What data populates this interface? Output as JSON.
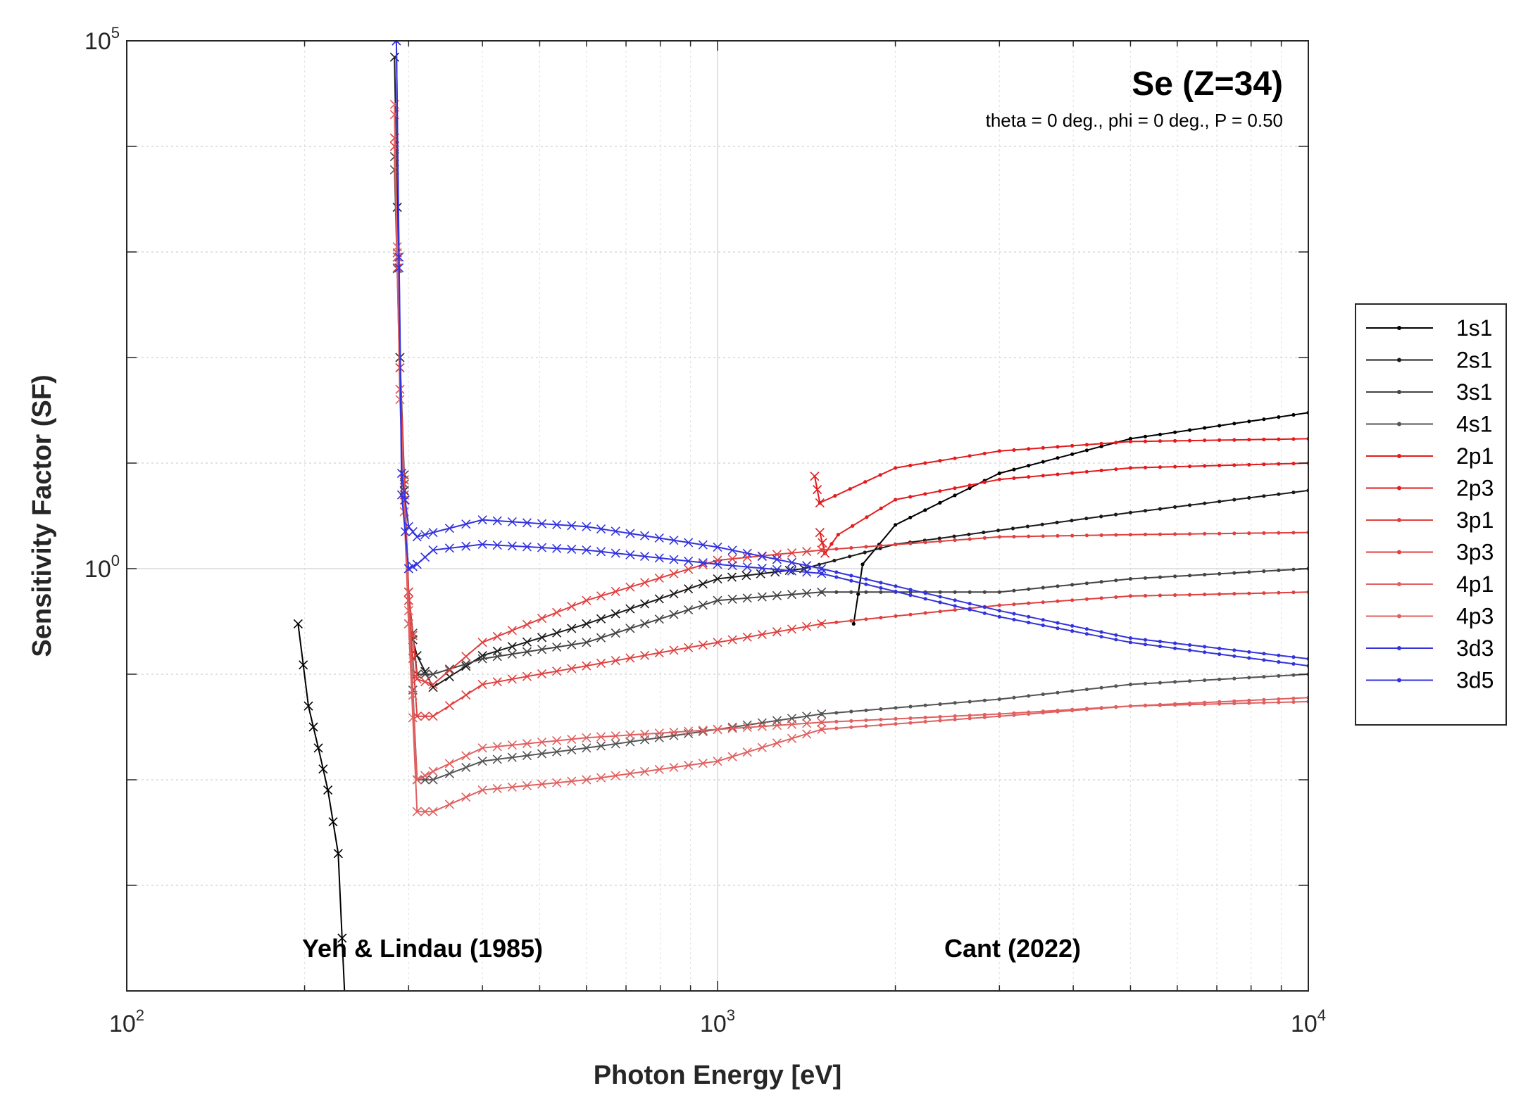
{
  "chart_data": {
    "type": "line",
    "title": "Se (Z=34)",
    "subtitle": "theta = 0 deg., phi = 0 deg., P = 0.50",
    "xlabel": "Photon Energy [eV]",
    "ylabel": "Sensitivity Factor (SF)",
    "xscale": "log",
    "yscale": "log",
    "xlim": [
      100,
      10000
    ],
    "ylim": [
      0.0001,
      100000
    ],
    "x_ticks": [
      {
        "base": "10",
        "exp": "2",
        "value": 100
      },
      {
        "base": "10",
        "exp": "3",
        "value": 1000
      },
      {
        "base": "10",
        "exp": "4",
        "value": 10000
      }
    ],
    "y_ticks": [
      {
        "base": "10",
        "exp": "0",
        "value": 1
      },
      {
        "base": "10",
        "exp": "5",
        "value": 100000
      }
    ],
    "grid": true,
    "legend_position": "outside-right",
    "annotations": [
      "Yeh & Lindau (1985)",
      "Cant (2022)"
    ],
    "series": [
      {
        "name": "1s1",
        "color": "#000000",
        "yeh": [
          [
            195,
            0.3
          ],
          [
            203,
            0.05
          ],
          [
            211,
            0.02
          ],
          [
            219,
            0.008
          ],
          [
            228,
            0.002
          ],
          [
            235,
            5e-05
          ]
        ],
        "cant": [
          [
            1700,
            0.3
          ],
          [
            1760,
            1.1
          ],
          [
            2000,
            2.6
          ],
          [
            3000,
            8
          ],
          [
            5000,
            17
          ],
          [
            10000,
            30
          ]
        ]
      },
      {
        "name": "2s1",
        "color": "#1a1a1a",
        "yeh": [
          [
            284,
            70000
          ],
          [
            290,
            100
          ],
          [
            300,
            0.3
          ],
          [
            310,
            0.15
          ],
          [
            330,
            0.075
          ],
          [
            400,
            0.15
          ],
          [
            600,
            0.3
          ],
          [
            1000,
            0.8
          ],
          [
            1400,
            1.0
          ]
        ],
        "cant": [
          [
            1400,
            1.0
          ],
          [
            2000,
            1.7
          ],
          [
            5000,
            3.4
          ],
          [
            10000,
            5.5
          ]
        ]
      },
      {
        "name": "3s1",
        "color": "#444444",
        "yeh": [
          [
            284,
            8000
          ],
          [
            290,
            100
          ],
          [
            300,
            0.6
          ],
          [
            310,
            0.1
          ],
          [
            330,
            0.1
          ],
          [
            400,
            0.14
          ],
          [
            600,
            0.2
          ],
          [
            1000,
            0.5
          ],
          [
            1500,
            0.6
          ]
        ],
        "cant": [
          [
            1500,
            0.6
          ],
          [
            3000,
            0.6
          ],
          [
            5000,
            0.8
          ],
          [
            10000,
            1.0
          ]
        ]
      },
      {
        "name": "4s1",
        "color": "#555555",
        "yeh": [
          [
            284,
            6000
          ],
          [
            290,
            80
          ],
          [
            300,
            0.5
          ],
          [
            310,
            0.01
          ],
          [
            330,
            0.01
          ],
          [
            400,
            0.015
          ],
          [
            600,
            0.02
          ],
          [
            1000,
            0.03
          ],
          [
            1500,
            0.042
          ]
        ],
        "cant": [
          [
            1500,
            0.042
          ],
          [
            3000,
            0.058
          ],
          [
            5000,
            0.08
          ],
          [
            10000,
            0.1
          ]
        ]
      },
      {
        "name": "2p1",
        "color": "#e41a1c",
        "yeh": [
          [
            1490,
            2.2
          ],
          [
            1520,
            1.4
          ]
        ],
        "cant": [
          [
            1520,
            1.4
          ],
          [
            1600,
            2.1
          ],
          [
            2000,
            4.5
          ],
          [
            3000,
            7
          ],
          [
            5000,
            9
          ],
          [
            10000,
            10
          ]
        ]
      },
      {
        "name": "2p3",
        "color": "#e41a1c",
        "yeh": [
          [
            1460,
            7.5
          ],
          [
            1490,
            4.2
          ]
        ],
        "cant": [
          [
            1490,
            4.2
          ],
          [
            2000,
            9
          ],
          [
            3000,
            13
          ],
          [
            5000,
            16
          ],
          [
            10000,
            17
          ]
        ]
      },
      {
        "name": "3p1",
        "color": "#e04040",
        "yeh": [
          [
            284,
            10000
          ],
          [
            290,
            50
          ],
          [
            300,
            0.5
          ],
          [
            310,
            0.04
          ],
          [
            330,
            0.04
          ],
          [
            400,
            0.08
          ],
          [
            600,
            0.12
          ],
          [
            1000,
            0.2
          ],
          [
            1500,
            0.3
          ]
        ],
        "cant": [
          [
            1500,
            0.3
          ],
          [
            3000,
            0.45
          ],
          [
            5000,
            0.55
          ],
          [
            10000,
            0.6
          ]
        ]
      },
      {
        "name": "3p3",
        "color": "#e04040",
        "yeh": [
          [
            284,
            12000
          ],
          [
            290,
            80
          ],
          [
            300,
            0.6
          ],
          [
            310,
            0.09
          ],
          [
            330,
            0.08
          ],
          [
            400,
            0.2
          ],
          [
            600,
            0.5
          ],
          [
            1000,
            1.2
          ],
          [
            1500,
            1.5
          ]
        ],
        "cant": [
          [
            1500,
            1.5
          ],
          [
            3000,
            2.0
          ],
          [
            5000,
            2.1
          ],
          [
            10000,
            2.2
          ]
        ]
      },
      {
        "name": "4p1",
        "color": "#e06060",
        "yeh": [
          [
            284,
            20000
          ],
          [
            290,
            40
          ],
          [
            300,
            0.3
          ],
          [
            310,
            0.005
          ],
          [
            330,
            0.005
          ],
          [
            400,
            0.008
          ],
          [
            600,
            0.01
          ],
          [
            1000,
            0.015
          ],
          [
            1500,
            0.03
          ]
        ],
        "cant": [
          [
            1500,
            0.03
          ],
          [
            3000,
            0.04
          ],
          [
            5000,
            0.05
          ],
          [
            10000,
            0.06
          ]
        ]
      },
      {
        "name": "4p3",
        "color": "#e06060",
        "yeh": [
          [
            284,
            25000
          ],
          [
            290,
            50
          ],
          [
            300,
            0.4
          ],
          [
            310,
            0.01
          ],
          [
            330,
            0.012
          ],
          [
            400,
            0.02
          ],
          [
            600,
            0.025
          ],
          [
            1000,
            0.03
          ],
          [
            1500,
            0.035
          ]
        ],
        "cant": [
          [
            1500,
            0.035
          ],
          [
            3000,
            0.042
          ],
          [
            5000,
            0.05
          ],
          [
            10000,
            0.055
          ]
        ]
      },
      {
        "name": "3d3",
        "color": "#3333dd",
        "yeh": [
          [
            286,
            100000
          ],
          [
            292,
            5
          ],
          [
            300,
            1.0
          ],
          [
            310,
            1.1
          ],
          [
            330,
            1.5
          ],
          [
            400,
            1.7
          ],
          [
            600,
            1.5
          ],
          [
            1000,
            1.1
          ],
          [
            1500,
            0.9
          ]
        ],
        "cant": [
          [
            1500,
            0.9
          ],
          [
            3000,
            0.35
          ],
          [
            5000,
            0.2
          ],
          [
            10000,
            0.12
          ]
        ]
      },
      {
        "name": "3d5",
        "color": "#3333dd",
        "yeh": [
          [
            286,
            100000
          ],
          [
            292,
            8
          ],
          [
            300,
            2.5
          ],
          [
            310,
            2
          ],
          [
            330,
            2.2
          ],
          [
            400,
            2.9
          ],
          [
            600,
            2.5
          ],
          [
            1000,
            1.6
          ],
          [
            1500,
            1.0
          ]
        ],
        "cant": [
          [
            1500,
            1.0
          ],
          [
            3000,
            0.4
          ],
          [
            5000,
            0.22
          ],
          [
            10000,
            0.14
          ]
        ]
      }
    ]
  }
}
